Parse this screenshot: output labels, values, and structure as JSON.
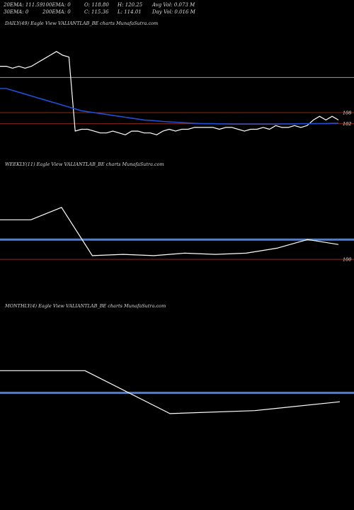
{
  "header": {
    "ema20": "20EMA: 111.59",
    "ema100": "100EMA: 0",
    "open": "O: 118.80",
    "high": "H: 120.25",
    "avg_vol": "Avg Vol: 0.073 M",
    "ema30": "30EMA: 0",
    "ema200": "200EMA: 0",
    "close": "C: 115.36",
    "low": "L: 114.01",
    "day_vol": "Day Vol: 0.016 M"
  },
  "colors": {
    "background": "#000000",
    "price_line": "#ffffff",
    "ema_line": "#1f4fd6",
    "level_line": "#8b2a12",
    "grey_line": "#9a9a9a",
    "blue_band": "#4a7fe0"
  },
  "chart_data": [
    {
      "type": "line",
      "title": "DAILY(49) Eagle  View  VALIANTLAB_BE charts MunafaSutra.com",
      "ylim": [
        90,
        152
      ],
      "series": [
        {
          "values": [
            133,
            133,
            132,
            133,
            132,
            133,
            135,
            137,
            139,
            141,
            139,
            138,
            98,
            99,
            99,
            98,
            97,
            97,
            98,
            97,
            96,
            98,
            98,
            97,
            97,
            96,
            98,
            99,
            98,
            99,
            99,
            100,
            100,
            100,
            100,
            99,
            100,
            100,
            99,
            98,
            99,
            99,
            100,
            99,
            101,
            100,
            100,
            101,
            100,
            101,
            104,
            106,
            104,
            106,
            104
          ]
        },
        {
          "values": [
            121,
            121,
            120,
            119,
            118,
            117,
            116,
            115,
            114,
            113,
            112,
            111,
            110,
            109,
            108.5,
            108,
            107.5,
            107,
            106.5,
            106,
            105.5,
            105,
            104.5,
            104,
            103.8,
            103.5,
            103.2,
            103,
            102.8,
            102.6,
            102.4,
            102.2,
            102.1,
            102,
            102,
            101.9,
            101.9,
            101.8,
            101.8,
            101.8,
            101.8,
            101.8,
            101.8,
            101.8,
            101.8,
            101.9,
            101.9,
            101.9,
            102,
            102,
            102,
            102.1,
            102.1,
            102.2,
            102.2
          ]
        }
      ],
      "levels": [
        {
          "value": 108,
          "label": "108"
        },
        {
          "value": 102,
          "label": "102"
        }
      ],
      "grey_level": 127
    },
    {
      "type": "line",
      "title": "WEEKLY(11) Eagle  View  VALIANTLAB_BE charts MunafaSutra.com",
      "ylim": [
        80,
        170
      ],
      "series": [
        {
          "values": [
            132,
            132,
            142,
            103,
            104,
            103,
            105,
            104,
            105,
            109,
            116,
            112
          ]
        }
      ],
      "blue_level": 116,
      "levels": [
        {
          "value": 100,
          "label": "100"
        }
      ]
    },
    {
      "type": "line",
      "title": "MONTHLY(4) Eagle  View  VALIANTLAB_BE charts MunafaSutra.com",
      "ylim": [
        90,
        170
      ],
      "series": [
        {
          "values": [
            132,
            132,
            103,
            105,
            111
          ]
        }
      ],
      "blue_level": 117
    }
  ]
}
